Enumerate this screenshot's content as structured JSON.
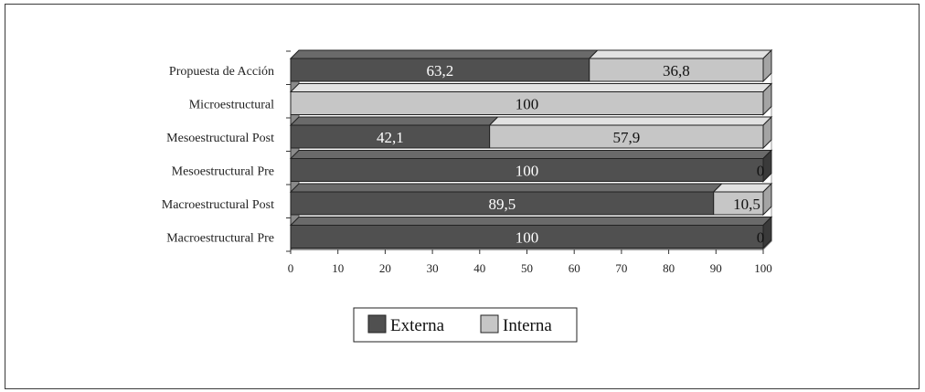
{
  "chart_data": {
    "type": "bar",
    "stacked": true,
    "orientation": "horizontal",
    "style": "3d",
    "categories": [
      "Propuesta de Acción",
      "Microestructural",
      "Mesoestructural Post",
      "Mesoestructural Pre",
      "Macroestructural Post",
      "Macroestructural Pre"
    ],
    "series": [
      {
        "name": "Externa",
        "color": "#505050",
        "values": [
          63.2,
          0,
          42.1,
          100,
          89.5,
          100
        ],
        "labels": [
          "63,2",
          "",
          "42,1",
          "100",
          "89,5",
          "100"
        ]
      },
      {
        "name": "Interna",
        "color": "#c6c6c6",
        "values": [
          36.8,
          100,
          57.9,
          0,
          10.5,
          0
        ],
        "labels": [
          "36,8",
          "100",
          "57,9",
          "0",
          "10,5",
          "0"
        ]
      }
    ],
    "xlim": [
      0,
      100
    ],
    "xticks": [
      "0",
      "10",
      "20",
      "30",
      "40",
      "50",
      "60",
      "70",
      "80",
      "90",
      "100"
    ],
    "legend_position": "bottom",
    "title": "",
    "xlabel": "",
    "ylabel": ""
  }
}
